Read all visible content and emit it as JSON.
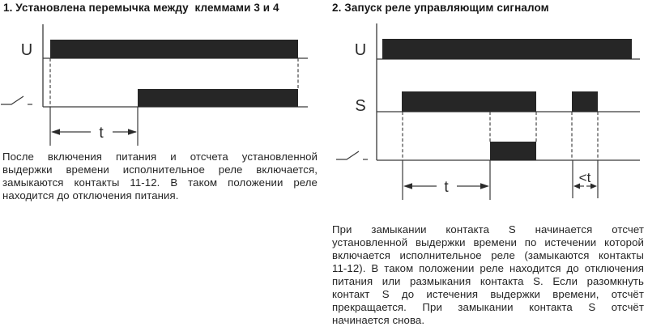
{
  "colors": {
    "bar": "#262626",
    "line": "#3a3a3a",
    "text": "#1f1f1f"
  },
  "left_panel": {
    "title": "1. Установлена перемычка между  клеммами 3 и 4",
    "labels": {
      "u": "U",
      "t": "t"
    },
    "paragraph_lines": [
      "После включения питания и отсчета установленной",
      "выдержки времени исполнительное реле включается,",
      "замыкаются контакты 11-12. В таком положении реле",
      "находится до отключения питания."
    ]
  },
  "right_panel": {
    "title": "2. Запуск реле управляющим сигналом",
    "labels": {
      "u": "U",
      "s": "S",
      "t": "t",
      "lt": "<t"
    },
    "paragraph_lines": [
      "При замыкании контакта S начинается отсчет",
      "установленной выдержки времени по истечении которой",
      "включается исполнительное реле (замыкаются контакты",
      "11-12). В таком положении реле находится до отключения",
      "питания или размыкания контакта S. Если разомкнуть",
      "контакт S до истечения выдержки времени, отсчёт",
      "прекращается. При замыкании контакта S отсчёт",
      "начинается снова."
    ]
  }
}
